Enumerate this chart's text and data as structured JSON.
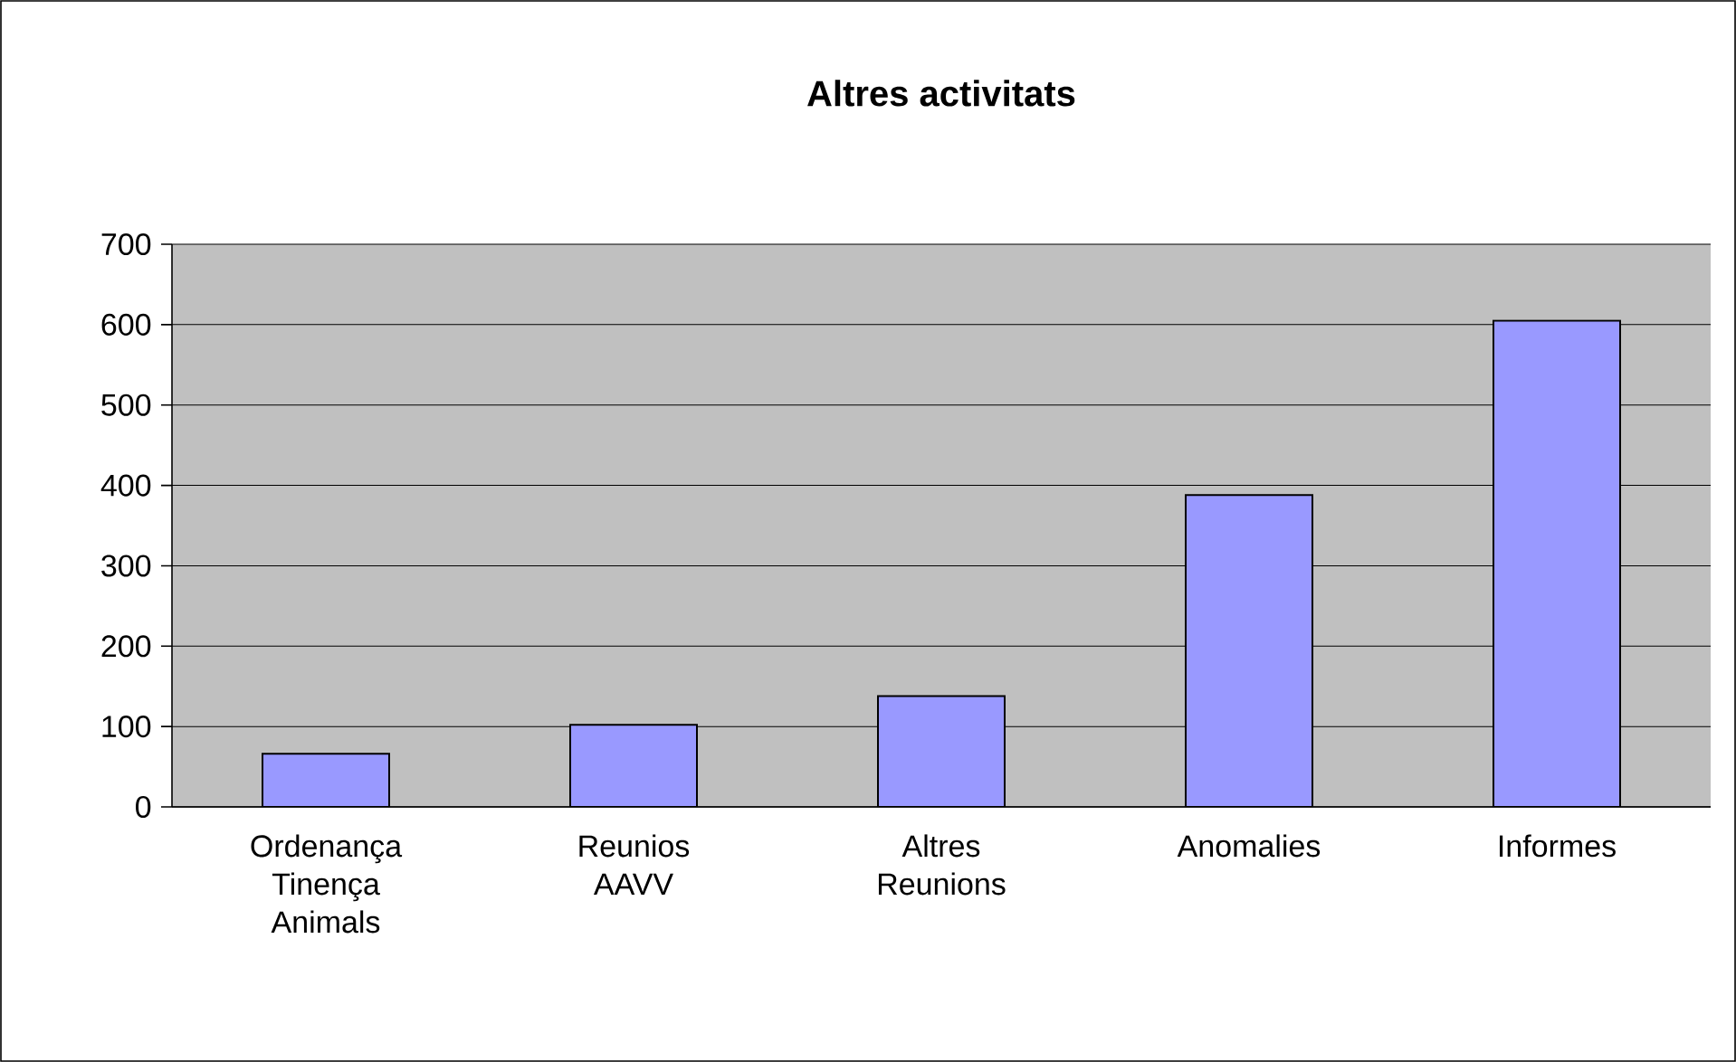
{
  "chart_data": {
    "type": "bar",
    "title": "Altres activitats",
    "categories": [
      "Ordenança Tinença Animals",
      "Reunios AAVV",
      "Altres Reunions",
      "Anomalies",
      "Informes"
    ],
    "values": [
      66,
      102,
      138,
      388,
      605
    ],
    "color": "#9999ff",
    "ylim": [
      0,
      700
    ],
    "yticks": [
      0,
      100,
      200,
      300,
      400,
      500,
      600,
      700
    ],
    "grid": "y"
  }
}
